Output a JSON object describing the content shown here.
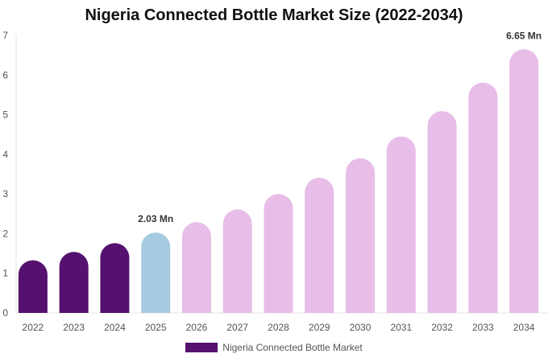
{
  "chart_data": {
    "type": "bar",
    "title": "Nigeria Connected Bottle Market Size (2022-2034)",
    "categories": [
      "2022",
      "2023",
      "2024",
      "2025",
      "2026",
      "2027",
      "2028",
      "2029",
      "2030",
      "2031",
      "2032",
      "2033",
      "2034"
    ],
    "series": [
      {
        "name": "Nigeria Connected Bottle Market",
        "values": [
          1.33,
          1.54,
          1.76,
          2.03,
          2.29,
          2.61,
          3.0,
          3.41,
          3.9,
          4.45,
          5.09,
          5.81,
          6.65
        ]
      }
    ],
    "bar_colors": [
      "#54116f",
      "#54116f",
      "#54116f",
      "#a6cbe0",
      "#e8bde8",
      "#e8bde8",
      "#e8bde8",
      "#e8bde8",
      "#e8bde8",
      "#e8bde8",
      "#e8bde8",
      "#e8bde8",
      "#e8bde8"
    ],
    "data_labels": [
      {
        "index": 3,
        "text": "2.03 Mn"
      },
      {
        "index": 12,
        "text": "6.65 Mn"
      }
    ],
    "yticks": [
      "0",
      "1",
      "2",
      "3",
      "4",
      "5",
      "6",
      "7"
    ],
    "ylim": [
      0,
      7
    ],
    "xlabel": "",
    "ylabel": "",
    "grid": false,
    "legend": {
      "label": "Nigeria Connected Bottle Market",
      "color": "#54116f",
      "placement": "bottom-center"
    }
  }
}
